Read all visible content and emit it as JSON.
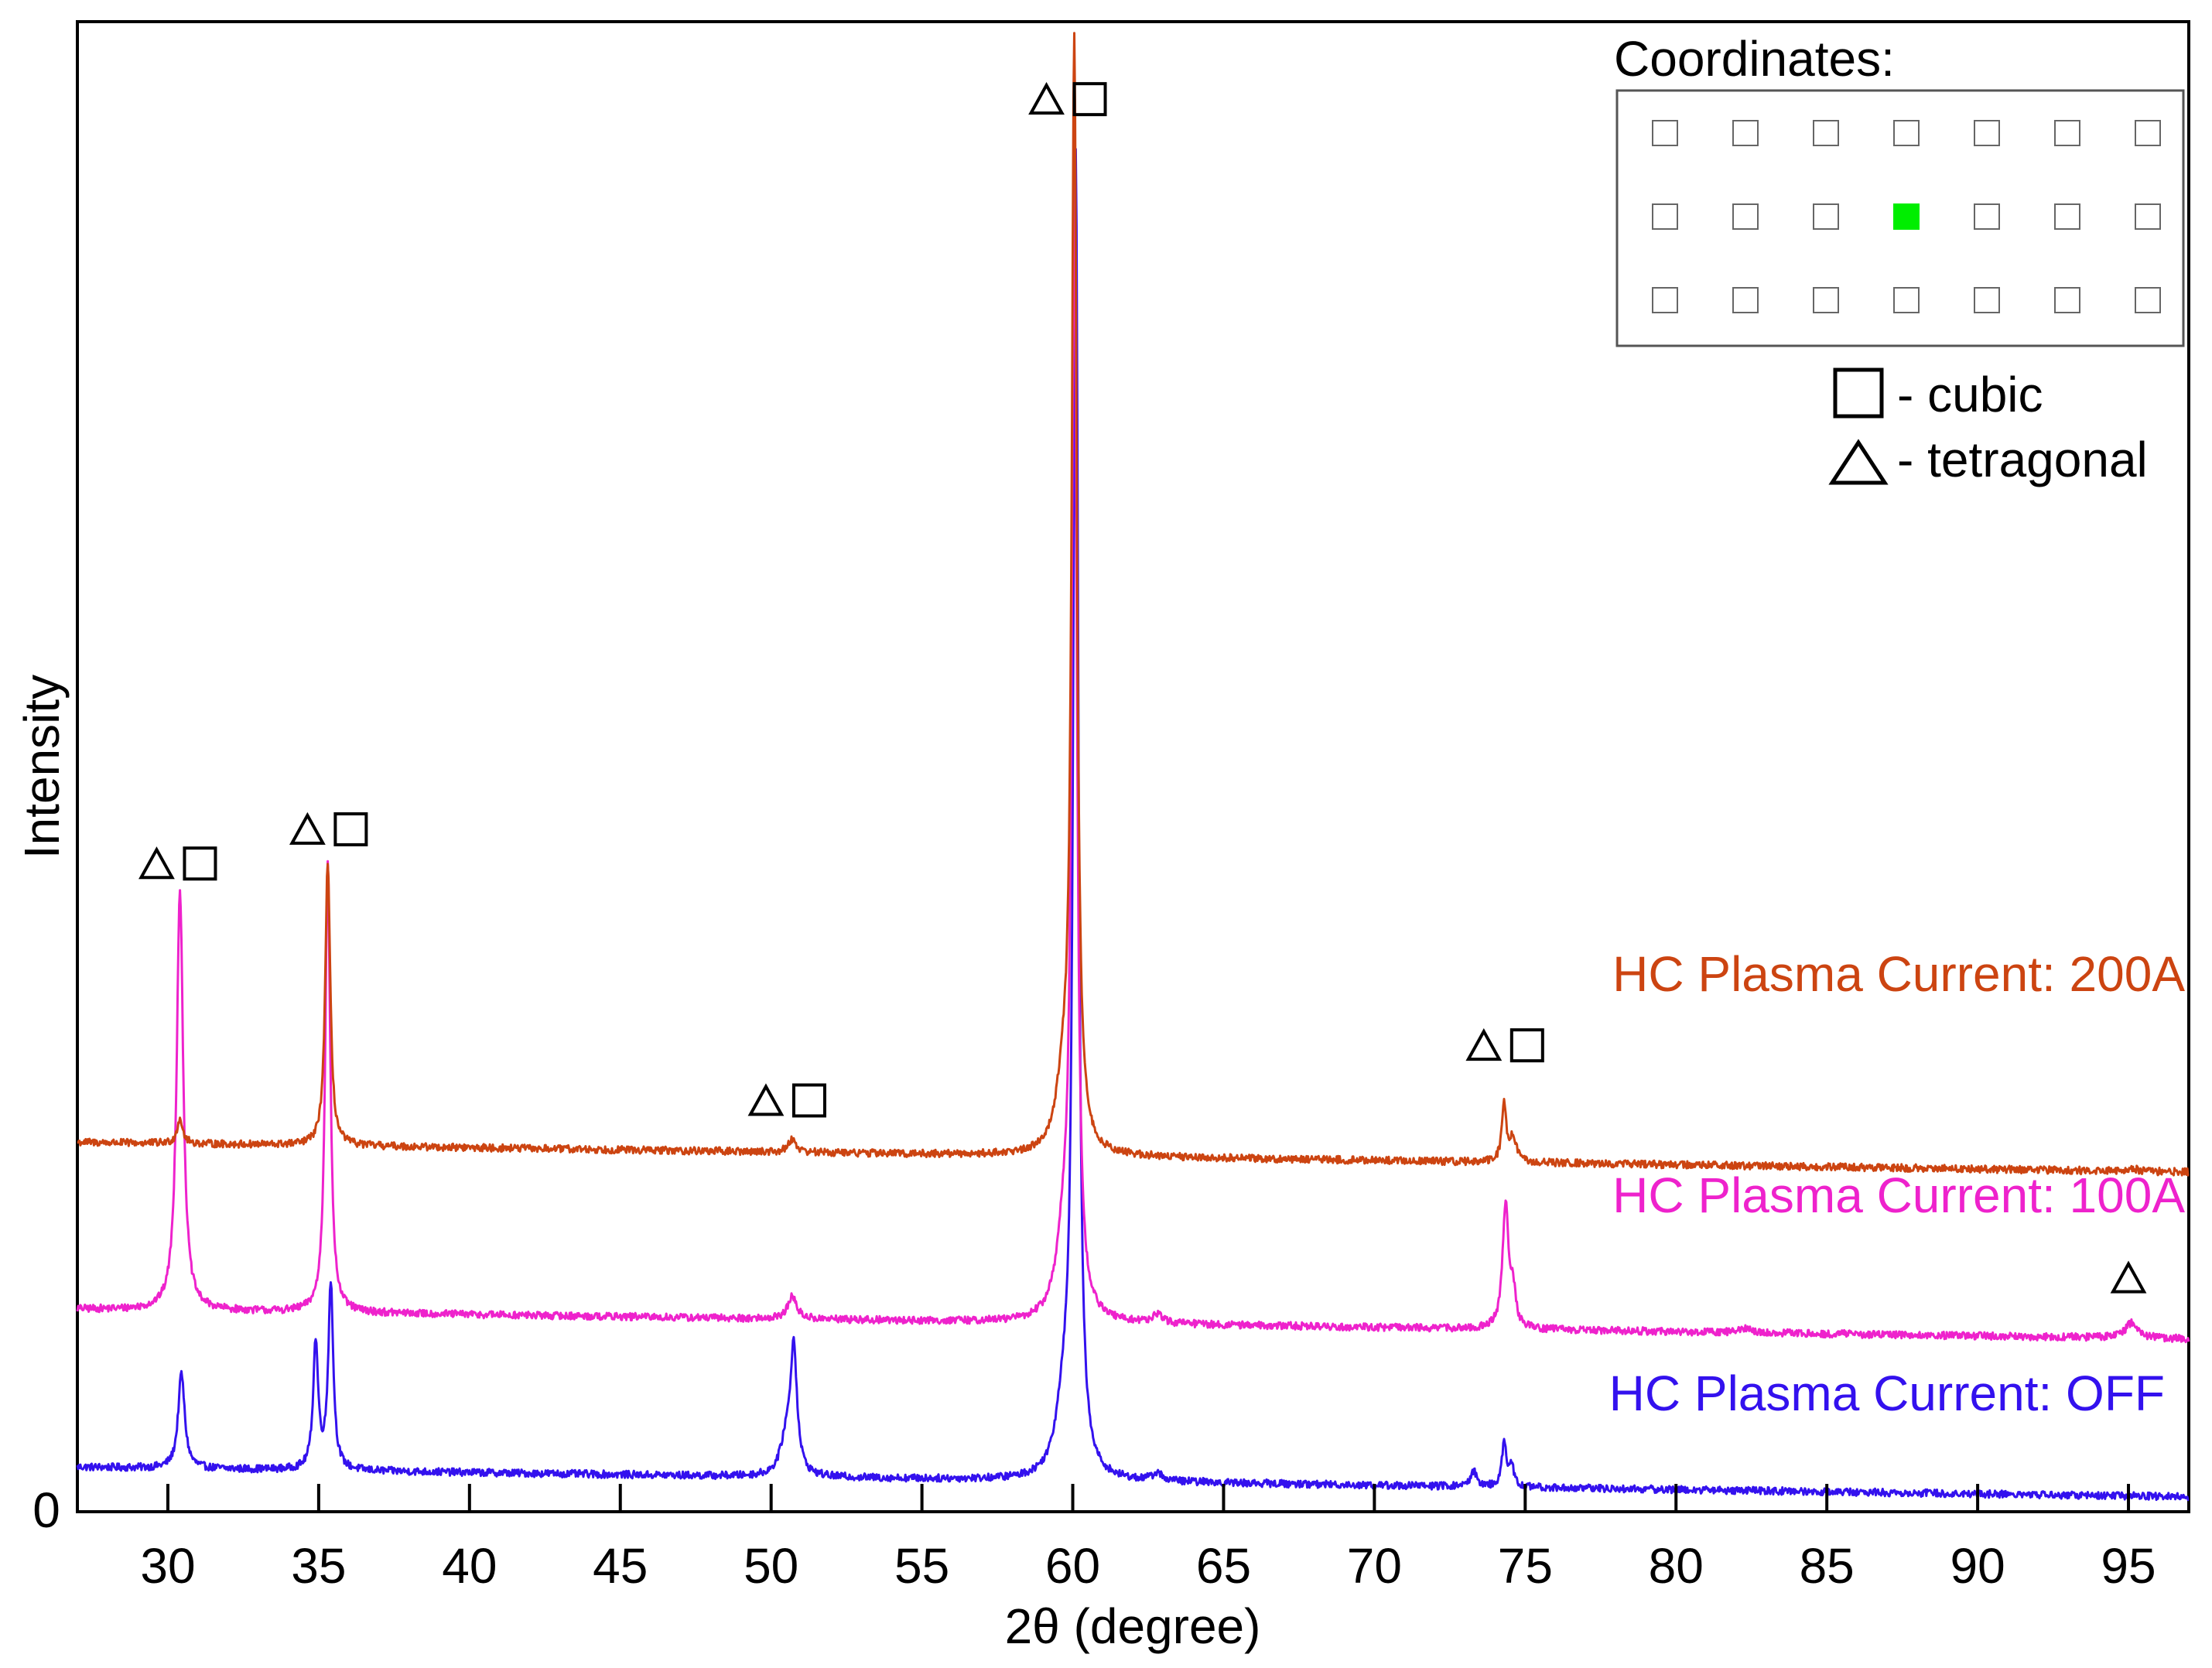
{
  "chart_data": {
    "type": "line",
    "title": "",
    "xlabel": "2θ (degree)",
    "ylabel": "Intensity",
    "xlim": [
      27,
      97
    ],
    "ylim": [
      0,
      100
    ],
    "x_ticks": [
      30,
      35,
      40,
      45,
      50,
      55,
      60,
      65,
      70,
      75,
      80,
      85,
      90,
      95
    ],
    "y_ticks": [
      0
    ],
    "grid": false,
    "series": [
      {
        "name": "HC Plasma Current: OFF",
        "label": "HC Plasma Current: OFF",
        "color": "#3311ee",
        "baseline": 3.0,
        "peaks": [
          {
            "x": 30.45,
            "height": 6.4,
            "width": 0.13
          },
          {
            "x": 34.9,
            "height": 8.5,
            "width": 0.1
          },
          {
            "x": 35.4,
            "height": 12.5,
            "width": 0.1
          },
          {
            "x": 50.5,
            "height": 2.3,
            "width": 0.22
          },
          {
            "x": 50.75,
            "height": 8.3,
            "width": 0.13
          },
          {
            "x": 59.7,
            "height": 4.5,
            "width": 0.3
          },
          {
            "x": 60.1,
            "height": 88.0,
            "width": 0.1
          },
          {
            "x": 62.8,
            "height": 0.5,
            "width": 0.2
          },
          {
            "x": 73.3,
            "height": 1.0,
            "width": 0.13
          },
          {
            "x": 74.3,
            "height": 2.9,
            "width": 0.09
          },
          {
            "x": 74.55,
            "height": 1.4,
            "width": 0.09
          }
        ]
      },
      {
        "name": "HC Plasma Current: 100A",
        "label": "HC Plasma Current: 100A",
        "color": "#ee22cc",
        "baseline": 13.6,
        "peaks": [
          {
            "x": 30.4,
            "height": 28.3,
            "width": 0.13
          },
          {
            "x": 35.3,
            "height": 30.3,
            "width": 0.1
          },
          {
            "x": 50.7,
            "height": 1.5,
            "width": 0.18
          },
          {
            "x": 59.7,
            "height": 4.8,
            "width": 0.3
          },
          {
            "x": 60.05,
            "height": 75.0,
            "width": 0.1
          },
          {
            "x": 62.8,
            "height": 0.6,
            "width": 0.18
          },
          {
            "x": 74.35,
            "height": 8.4,
            "width": 0.12
          },
          {
            "x": 74.6,
            "height": 2.2,
            "width": 0.1
          },
          {
            "x": 82.3,
            "height": 0.3,
            "width": 0.2
          },
          {
            "x": 95.1,
            "height": 1.0,
            "width": 0.25
          }
        ]
      },
      {
        "name": "HC Plasma Current: 200A",
        "label": "HC Plasma Current: 200A",
        "color": "#cc4411",
        "baseline": 24.8,
        "peaks": [
          {
            "x": 30.4,
            "height": 1.7,
            "width": 0.11
          },
          {
            "x": 35.3,
            "height": 19.0,
            "width": 0.1
          },
          {
            "x": 50.7,
            "height": 0.9,
            "width": 0.15
          },
          {
            "x": 59.7,
            "height": 4.2,
            "width": 0.3
          },
          {
            "x": 60.05,
            "height": 73.5,
            "width": 0.1
          },
          {
            "x": 74.3,
            "height": 3.8,
            "width": 0.09
          },
          {
            "x": 74.6,
            "height": 1.7,
            "width": 0.12
          },
          {
            "x": 95.1,
            "height": 0.2,
            "width": 0.2
          }
        ]
      }
    ],
    "annotations": [
      {
        "x": 30.5,
        "y": 43.5,
        "symbols": "△□"
      },
      {
        "x": 35.5,
        "y": 45.8,
        "symbols": "△□"
      },
      {
        "x": 50.7,
        "y": 27.6,
        "symbols": "△□"
      },
      {
        "x": 60.0,
        "y": 94.8,
        "symbols": "△□"
      },
      {
        "x": 74.5,
        "y": 31.3,
        "symbols": "△□"
      },
      {
        "x": 95.0,
        "y": 15.7,
        "symbols": "△"
      }
    ],
    "legend": {
      "position": "top-right",
      "coordinates_title": "Coordinates:",
      "grid_rows": 3,
      "grid_cols": 7,
      "highlight": {
        "row": 1,
        "col": 3,
        "color": "#00ee00"
      },
      "entries": [
        {
          "symbol": "square",
          "label": "- cubic"
        },
        {
          "symbol": "triangle",
          "label": "- tetragonal"
        }
      ]
    }
  }
}
